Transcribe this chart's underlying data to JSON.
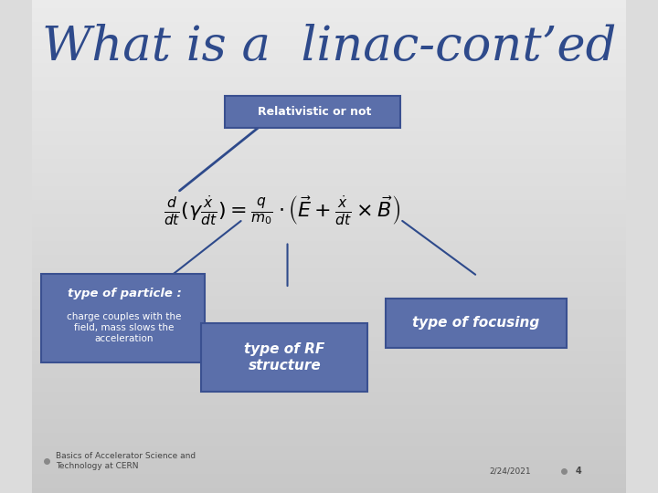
{
  "title": "What is a  linac-cont’ed",
  "title_color": "#2E4A8B",
  "title_fontsize": 38,
  "bg_color_top": "#e8e8e8",
  "bg_color_bottom": "#d0d0d0",
  "box_color": "#5B6FAA",
  "box_text_color": "white",
  "formula": "\\frac{d}{dt}(\\gamma\\frac{\\dot{x}}{dt}) = \\frac{q}{m_0} \\cdot \\left( \\vec{E} + \\frac{\\dot{x}}{dt} \\times \\vec{B} \\right)",
  "label_relativistic": "Relativistic or not",
  "label_particle": "type of particle :",
  "label_particle_sub": "charge couples with the\nfield, mass slows the\nacceleration",
  "label_focusing": "type of focusing",
  "label_rf": "type of RF\nstructure",
  "footer_left": "Basics of Accelerator Science and\nTechnology at CERN",
  "footer_right": "2/24/2021",
  "page_num": "4"
}
